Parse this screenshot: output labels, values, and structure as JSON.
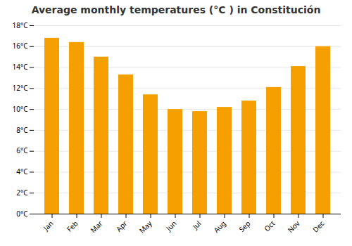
{
  "chart_data": {
    "type": "bar",
    "title": "Average monthly temperatures (°C ) in Constitución",
    "categories": [
      "Jan",
      "Feb",
      "Mar",
      "Apr",
      "May",
      "Jun",
      "Jul",
      "Aug",
      "Sep",
      "Oct",
      "Nov",
      "Dec"
    ],
    "values": [
      16.8,
      16.4,
      15.0,
      13.3,
      11.4,
      10.0,
      9.8,
      10.2,
      10.8,
      12.1,
      14.1,
      16.0
    ],
    "color": "#F5A000",
    "ylim": [
      0,
      18
    ],
    "yticks": [
      {
        "value": 0,
        "label": "0°C"
      },
      {
        "value": 2,
        "label": "2°C"
      },
      {
        "value": 4,
        "label": "4°C"
      },
      {
        "value": 6,
        "label": "6°C"
      },
      {
        "value": 8,
        "label": "8°C"
      },
      {
        "value": 10,
        "label": "10°C"
      },
      {
        "value": 12,
        "label": "12°C"
      },
      {
        "value": 14,
        "label": "14°C"
      },
      {
        "value": 16,
        "label": "16°C"
      },
      {
        "value": 18,
        "label": "18°C"
      }
    ],
    "grid": true
  }
}
